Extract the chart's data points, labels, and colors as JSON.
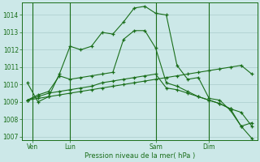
{
  "title": "Pression niveau de la mer( hPa )",
  "bg_color": "#cce8e8",
  "grid_color": "#aacccc",
  "line_color": "#1a6e1a",
  "ylim": [
    1006.8,
    1014.7
  ],
  "yticks": [
    1007,
    1008,
    1009,
    1010,
    1011,
    1012,
    1013,
    1014
  ],
  "xtick_labels": [
    "Ven",
    "Lun",
    "Sam",
    "Dim"
  ],
  "xtick_positions": [
    1,
    4,
    10,
    14
  ],
  "vline_positions": [
    1,
    4,
    10,
    14
  ],
  "series": [
    [
      1010.1,
      1009.0,
      1009.3,
      1010.6,
      1012.2,
      1012.0,
      1012.2,
      1013.0,
      1012.9,
      1013.6,
      1014.4,
      1014.5,
      1014.1,
      1014.0,
      1011.1,
      1010.3,
      1010.4,
      1009.2,
      1009.1,
      1008.5,
      1007.6,
      1007.8
    ],
    [
      1009.1,
      1009.4,
      1009.6,
      1010.5,
      1010.3,
      1010.4,
      1010.5,
      1010.6,
      1010.7,
      1012.6,
      1013.1,
      1013.1,
      1012.1,
      1010.1,
      1009.9,
      1009.6,
      1009.3,
      1009.1,
      1008.9,
      1008.6,
      1008.4,
      1007.6
    ],
    [
      1009.1,
      1009.3,
      1009.5,
      1009.6,
      1009.7,
      1009.8,
      1009.9,
      1010.1,
      1010.2,
      1010.3,
      1010.4,
      1010.5,
      1010.6,
      1009.8,
      1009.7,
      1009.5,
      1009.3,
      1009.1,
      1008.9,
      1008.6,
      1007.6,
      1006.9
    ],
    [
      1009.1,
      1009.2,
      1009.3,
      1009.4,
      1009.5,
      1009.6,
      1009.7,
      1009.8,
      1009.9,
      1010.0,
      1010.1,
      1010.2,
      1010.3,
      1010.4,
      1010.5,
      1010.6,
      1010.7,
      1010.8,
      1010.9,
      1011.0,
      1011.1,
      1010.6
    ]
  ],
  "n_points": 22,
  "figsize": [
    3.2,
    2.0
  ],
  "dpi": 100
}
